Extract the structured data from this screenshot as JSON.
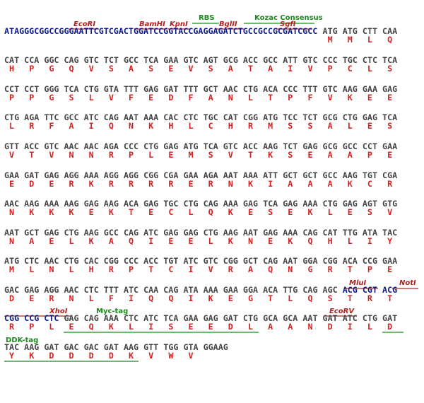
{
  "annotations": [
    "RBS",
    "Kozac Consensus",
    "EcoRI",
    "BamHI",
    "KpnI",
    "BglII",
    "SgfI",
    "MluI",
    "NotI",
    "XhoI",
    "Myc-tag",
    "EcoRV",
    "DDK-tag"
  ],
  "rows": [
    {
      "leader": "ATAGGGCGGCCGGGAATTCGTCGACTGGATCCGGTACCGAGGAGATCTGCCGCCGCGATCGCC",
      "codons": [
        "ATG",
        "ATG",
        "CTT",
        "CAA"
      ],
      "aa": [
        "M",
        "M",
        "L",
        "Q"
      ]
    },
    {
      "codons": [
        "CAT",
        "CCA",
        "GGC",
        "CAG",
        "GTC",
        "TCT",
        "GCC",
        "TCA",
        "GAA",
        "GTC",
        "AGT",
        "GCG",
        "ACC",
        "GCC",
        "ATT",
        "GTC",
        "CCC",
        "TGC",
        "CTC",
        "TCA"
      ],
      "aa": [
        "H",
        "P",
        "G",
        "Q",
        "V",
        "S",
        "A",
        "S",
        "E",
        "V",
        "S",
        "A",
        "T",
        "A",
        "I",
        "V",
        "P",
        "C",
        "L",
        "S"
      ]
    },
    {
      "codons": [
        "CCT",
        "CCT",
        "GGG",
        "TCA",
        "CTG",
        "GTA",
        "TTT",
        "GAG",
        "GAT",
        "TTT",
        "GCT",
        "AAC",
        "CTG",
        "ACA",
        "CCC",
        "TTT",
        "GTC",
        "AAG",
        "GAA",
        "GAG"
      ],
      "aa": [
        "P",
        "P",
        "G",
        "S",
        "L",
        "V",
        "F",
        "E",
        "D",
        "F",
        "A",
        "N",
        "L",
        "T",
        "P",
        "F",
        "V",
        "K",
        "E",
        "E"
      ]
    },
    {
      "codons": [
        "CTG",
        "AGA",
        "TTC",
        "GCC",
        "ATC",
        "CAG",
        "AAT",
        "AAA",
        "CAC",
        "CTC",
        "TGC",
        "CAT",
        "CGG",
        "ATG",
        "TCC",
        "TCT",
        "GCG",
        "CTG",
        "GAG",
        "TCA"
      ],
      "aa": [
        "L",
        "R",
        "F",
        "A",
        "I",
        "Q",
        "N",
        "K",
        "H",
        "L",
        "C",
        "H",
        "R",
        "M",
        "S",
        "S",
        "A",
        "L",
        "E",
        "S"
      ]
    },
    {
      "codons": [
        "GTT",
        "ACC",
        "GTC",
        "AAC",
        "AAC",
        "AGA",
        "CCC",
        "CTG",
        "GAG",
        "ATG",
        "TCA",
        "GTC",
        "ACC",
        "AAG",
        "TCT",
        "GAG",
        "GCG",
        "GCC",
        "CCT",
        "GAA"
      ],
      "aa": [
        "V",
        "T",
        "V",
        "N",
        "N",
        "R",
        "P",
        "L",
        "E",
        "M",
        "S",
        "V",
        "T",
        "K",
        "S",
        "E",
        "A",
        "A",
        "P",
        "E"
      ]
    },
    {
      "codons": [
        "GAA",
        "GAT",
        "GAG",
        "AGG",
        "AAA",
        "AGG",
        "AGG",
        "CGG",
        "CGA",
        "GAA",
        "AGA",
        "AAT",
        "AAA",
        "ATT",
        "GCT",
        "GCT",
        "GCC",
        "AAG",
        "TGT",
        "CGA"
      ],
      "aa": [
        "E",
        "D",
        "E",
        "R",
        "K",
        "R",
        "R",
        "R",
        "R",
        "E",
        "R",
        "N",
        "K",
        "I",
        "A",
        "A",
        "A",
        "K",
        "C",
        "R"
      ]
    },
    {
      "codons": [
        "AAC",
        "AAG",
        "AAA",
        "AAG",
        "GAG",
        "AAG",
        "ACA",
        "GAG",
        "TGC",
        "CTG",
        "CAG",
        "AAA",
        "GAG",
        "TCA",
        "GAG",
        "AAA",
        "CTG",
        "GAG",
        "AGT",
        "GTG"
      ],
      "aa": [
        "N",
        "K",
        "K",
        "K",
        "E",
        "K",
        "T",
        "E",
        "C",
        "L",
        "Q",
        "K",
        "E",
        "S",
        "E",
        "K",
        "L",
        "E",
        "S",
        "V"
      ]
    },
    {
      "codons": [
        "AAT",
        "GCT",
        "GAG",
        "CTG",
        "AAG",
        "GCC",
        "CAG",
        "ATC",
        "GAG",
        "GAG",
        "CTG",
        "AAG",
        "AAT",
        "GAG",
        "AAA",
        "CAG",
        "CAT",
        "TTG",
        "ATA",
        "TAC"
      ],
      "aa": [
        "N",
        "A",
        "E",
        "L",
        "K",
        "A",
        "Q",
        "I",
        "E",
        "E",
        "L",
        "K",
        "N",
        "E",
        "K",
        "Q",
        "H",
        "L",
        "I",
        "Y"
      ]
    },
    {
      "codons": [
        "ATG",
        "CTC",
        "AAC",
        "CTG",
        "CAC",
        "CGG",
        "CCC",
        "ACC",
        "TGT",
        "ATC",
        "GTC",
        "CGG",
        "GCT",
        "CAG",
        "AAT",
        "GGA",
        "CGG",
        "ACA",
        "CCG",
        "GAA"
      ],
      "aa": [
        "M",
        "L",
        "N",
        "L",
        "H",
        "R",
        "P",
        "T",
        "C",
        "I",
        "V",
        "R",
        "A",
        "Q",
        "N",
        "G",
        "R",
        "T",
        "P",
        "E"
      ]
    },
    {
      "codons": [
        "GAC",
        "GAG",
        "AGG",
        "AAC",
        "CTC",
        "TTT",
        "ATC",
        "CAA",
        "CAG",
        "ATA",
        "AAA",
        "GAA",
        "GGA",
        "ACA",
        "TTG",
        "CAG",
        "AGC"
      ],
      "tail": [
        "ACG",
        "CGT",
        "ACG"
      ],
      "aa": [
        "D",
        "E",
        "R",
        "N",
        "L",
        "F",
        "I",
        "Q",
        "Q",
        "I",
        "K",
        "E",
        "G",
        "T",
        "L",
        "Q",
        "S",
        "T",
        "R",
        "T"
      ]
    },
    {
      "head": [
        "CGG",
        "CCG",
        "CTC"
      ],
      "codons": [
        "GAG",
        "CAG",
        "AAA",
        "CTC",
        "ATC",
        "TCA",
        "GAA",
        "GAG",
        "GAT",
        "CTG",
        "GCA",
        "GCA",
        "AAT",
        "GAT",
        "ATC",
        "CTG",
        "GAT"
      ],
      "aa": [
        "R",
        "P",
        "L",
        "E",
        "Q",
        "K",
        "L",
        "I",
        "S",
        "E",
        "E",
        "D",
        "L",
        "A",
        "A",
        "N",
        "D",
        "I",
        "L",
        "D"
      ]
    },
    {
      "codons": [
        "TAC",
        "AAG",
        "GAT",
        "GAC",
        "GAC",
        "GAT",
        "AAG",
        "GTT",
        "TGG",
        "GTA",
        "GGAAG"
      ],
      "aa": [
        "Y",
        "K",
        "D",
        "D",
        "D",
        "D",
        "K",
        "V",
        "W",
        "V"
      ]
    }
  ]
}
